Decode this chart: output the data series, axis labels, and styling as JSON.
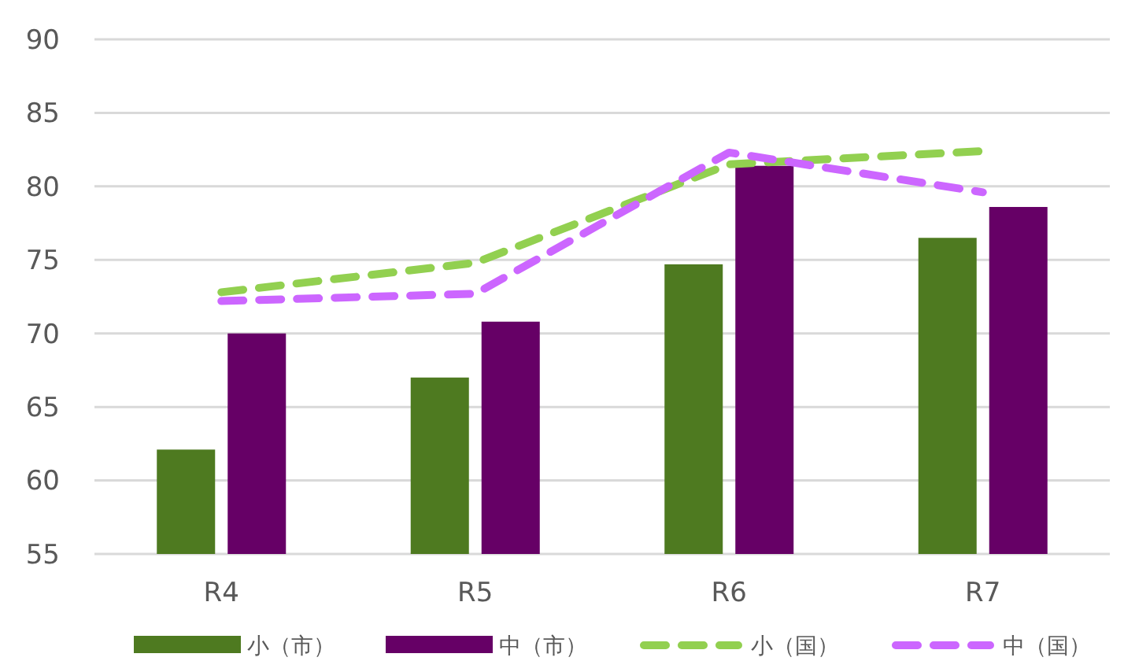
{
  "chart_data": {
    "type": "bar",
    "categories": [
      "R4",
      "R5",
      "R6",
      "R7"
    ],
    "series": [
      {
        "name": "小（市）",
        "color": "#4e7a20",
        "values": [
          62.1,
          67.0,
          74.7,
          76.5
        ]
      },
      {
        "name": "中（市）",
        "color": "#660066",
        "values": [
          70.0,
          70.8,
          81.4,
          78.6
        ]
      },
      {
        "name": "小（国）",
        "type": "line",
        "color": "#92d050",
        "line_style": "dashed",
        "values": [
          72.8,
          74.8,
          81.5,
          82.4
        ]
      },
      {
        "name": "中（国）",
        "type": "line",
        "color": "#cc66ff",
        "line_style": "dashed",
        "values": [
          72.2,
          72.7,
          82.3,
          79.6
        ]
      }
    ],
    "ylim": [
      55,
      90
    ],
    "yticks": [
      55,
      60,
      65,
      70,
      75,
      80,
      85,
      90
    ],
    "grid": "y",
    "legend": "bottom"
  }
}
